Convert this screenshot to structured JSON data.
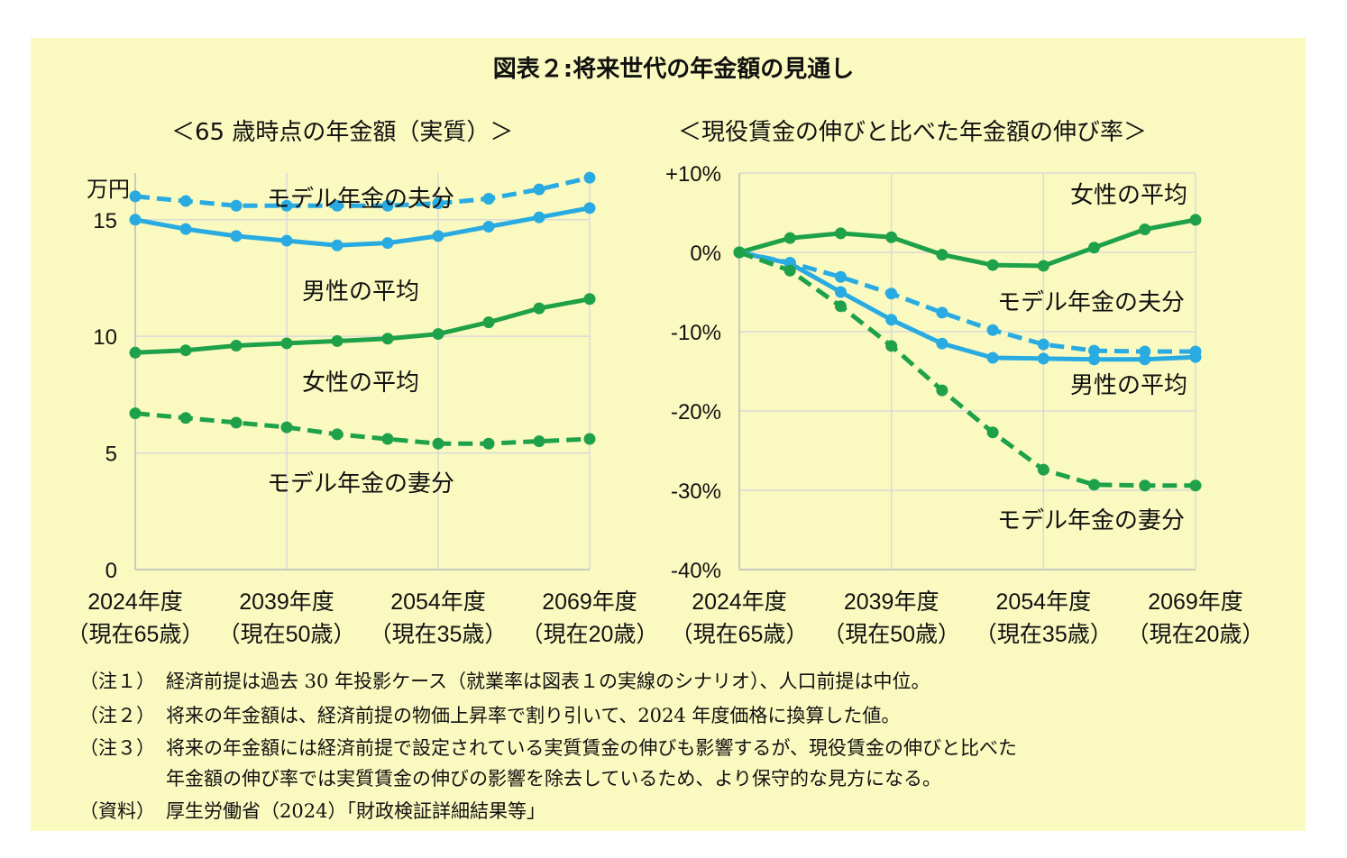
{
  "colors": {
    "panel_bg": "#fafac0",
    "blue": "#29abe2",
    "green": "#1fa14a",
    "grid": "#d9d9d9",
    "axis": "#bfbfbf"
  },
  "title": "図表２:将来世代の年金額の見通し",
  "chart_data": [
    {
      "type": "line",
      "title": "＜65 歳時点の年金額（実質）＞",
      "ylabel": "万円",
      "ylim": [
        0,
        17
      ],
      "yticks": [
        {
          "v": 0,
          "label": "0"
        },
        {
          "v": 5,
          "label": "5"
        },
        {
          "v": 10,
          "label": "10"
        },
        {
          "v": 15,
          "label": "15"
        }
      ],
      "x": [
        2024,
        2029,
        2034,
        2039,
        2044,
        2049,
        2054,
        2059,
        2064,
        2069
      ],
      "xlim": [
        2024,
        2069
      ],
      "xticks": [
        {
          "v": 2024,
          "line1": "2024年度",
          "line2": "（現在65歳）"
        },
        {
          "v": 2039,
          "line1": "2039年度",
          "line2": "（現在50歳）"
        },
        {
          "v": 2054,
          "line1": "2054年度",
          "line2": "（現在35歳）"
        },
        {
          "v": 2069,
          "line1": "2069年度",
          "line2": "（現在20歳）"
        }
      ],
      "series": [
        {
          "name": "モデル年金の夫分",
          "color": "blue",
          "dash": true,
          "values": [
            16.0,
            15.8,
            15.6,
            15.6,
            15.6,
            15.6,
            15.7,
            15.9,
            16.3,
            16.8
          ]
        },
        {
          "name": "男性の平均",
          "color": "blue",
          "dash": false,
          "values": [
            15.0,
            14.6,
            14.3,
            14.1,
            13.9,
            14.0,
            14.3,
            14.7,
            15.1,
            15.5
          ]
        },
        {
          "name": "女性の平均",
          "color": "green",
          "dash": false,
          "values": [
            9.3,
            9.4,
            9.6,
            9.7,
            9.8,
            9.9,
            10.1,
            10.6,
            11.2,
            11.6
          ]
        },
        {
          "name": "モデル年金の妻分",
          "color": "green",
          "dash": true,
          "values": [
            6.7,
            6.5,
            6.3,
            6.1,
            5.8,
            5.6,
            5.4,
            5.4,
            5.5,
            5.6
          ]
        }
      ],
      "annotations": [
        {
          "series": 0,
          "text": "モデル年金の夫分"
        },
        {
          "series": 1,
          "text": "男性の平均"
        },
        {
          "series": 2,
          "text": "女性の平均"
        },
        {
          "series": 3,
          "text": "モデル年金の妻分"
        }
      ]
    },
    {
      "type": "line",
      "title": "＜現役賃金の伸びと比べた年金額の伸び率＞",
      "ylim": [
        -40,
        10
      ],
      "yticks": [
        {
          "v": 10,
          "label": "+10%"
        },
        {
          "v": 0,
          "label": "0%"
        },
        {
          "v": -10,
          "label": "-10%"
        },
        {
          "v": -20,
          "label": "-20%"
        },
        {
          "v": -30,
          "label": "-30%"
        },
        {
          "v": -40,
          "label": "-40%"
        }
      ],
      "x": [
        2024,
        2029,
        2034,
        2039,
        2044,
        2049,
        2054,
        2059,
        2064,
        2069
      ],
      "xlim": [
        2024,
        2069
      ],
      "xticks": [
        {
          "v": 2024,
          "line1": "2024年度",
          "line2": "（現在65歳）"
        },
        {
          "v": 2039,
          "line1": "2039年度",
          "line2": "（現在50歳）"
        },
        {
          "v": 2054,
          "line1": "2054年度",
          "line2": "（現在35歳）"
        },
        {
          "v": 2069,
          "line1": "2069年度",
          "line2": "（現在20歳）"
        }
      ],
      "series": [
        {
          "name": "女性の平均",
          "color": "green",
          "dash": false,
          "values": [
            0.0,
            1.8,
            2.4,
            1.9,
            -0.3,
            -1.6,
            -1.7,
            0.6,
            2.9,
            4.1
          ]
        },
        {
          "name": "モデル年金の夫分",
          "color": "blue",
          "dash": true,
          "values": [
            0.0,
            -1.3,
            -3.1,
            -5.2,
            -7.6,
            -9.8,
            -11.6,
            -12.4,
            -12.5,
            -12.5
          ]
        },
        {
          "name": "男性の平均",
          "color": "blue",
          "dash": false,
          "values": [
            0.0,
            -1.4,
            -5.0,
            -8.5,
            -11.5,
            -13.3,
            -13.4,
            -13.5,
            -13.5,
            -13.2
          ]
        },
        {
          "name": "モデル年金の妻分",
          "color": "green",
          "dash": true,
          "values": [
            0.0,
            -2.3,
            -6.8,
            -11.8,
            -17.4,
            -22.7,
            -27.4,
            -29.3,
            -29.4,
            -29.4
          ]
        }
      ],
      "annotations": [
        {
          "series": 0,
          "text": "女性の平均"
        },
        {
          "series": 1,
          "text": "モデル年金の夫分"
        },
        {
          "series": 2,
          "text": "男性の平均"
        },
        {
          "series": 3,
          "text": "モデル年金の妻分"
        }
      ]
    }
  ],
  "notes": [
    {
      "label": "（注１）",
      "lines": [
        "経済前提は過去 30 年投影ケース（就業率は図表１の実線のシナリオ）、人口前提は中位。"
      ]
    },
    {
      "label": "（注２）",
      "lines": [
        "将来の年金額は、経済前提の物価上昇率で割り引いて、2024 年度価格に換算した値。"
      ]
    },
    {
      "label": "（注３）",
      "lines": [
        "将来の年金額には経済前提で設定されている実質賃金の伸びも影響するが、現役賃金の伸びと比べた",
        "年金額の伸び率では実質賃金の伸びの影響を除去しているため、より保守的な見方になる。"
      ]
    },
    {
      "label": "（資料）",
      "lines": [
        "厚生労働省（2024）「財政検証詳細結果等」"
      ]
    }
  ]
}
